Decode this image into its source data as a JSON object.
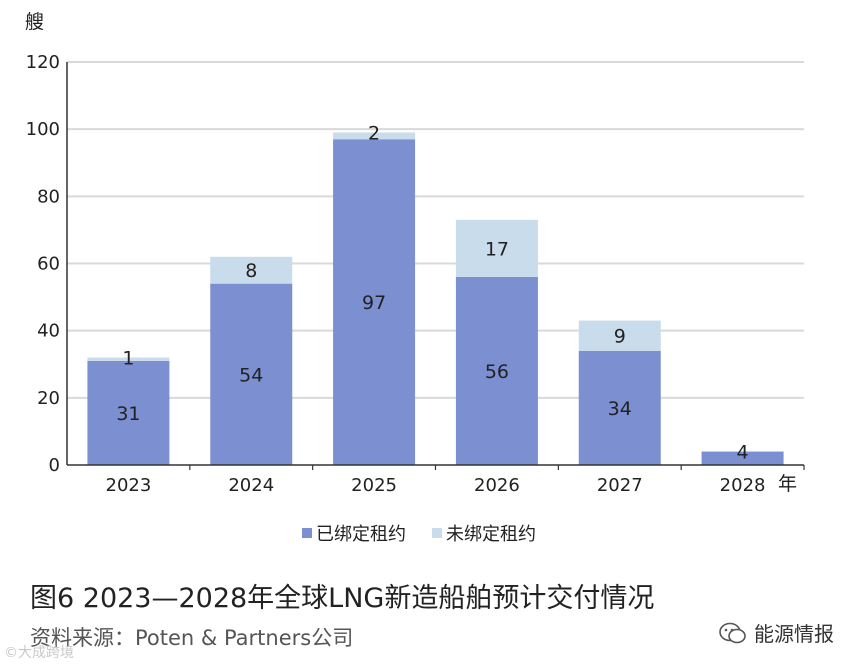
{
  "chart_data": {
    "type": "bar",
    "stacked": true,
    "categories": [
      "2023",
      "2024",
      "2025",
      "2026",
      "2027",
      "2028"
    ],
    "series": [
      {
        "name": "已绑定租约",
        "color": "#7b8fd1",
        "values": [
          31,
          54,
          97,
          56,
          34,
          4
        ]
      },
      {
        "name": "未绑定租约",
        "color": "#c9dcec",
        "values": [
          1,
          8,
          2,
          17,
          9,
          null
        ]
      }
    ],
    "title": "",
    "xlabel": "年",
    "ylabel": "艘",
    "ylim": [
      0,
      120
    ],
    "yticks": [
      0,
      20,
      40,
      60,
      80,
      100,
      120
    ],
    "grid": true,
    "legend_position": "bottom"
  },
  "caption": "图6    2023—2028年全球LNG新造船舶预计交付情况",
  "source": "资料来源：Poten & Partners公司",
  "wechat_label": "能源情报",
  "watermark": "©大成跨境"
}
